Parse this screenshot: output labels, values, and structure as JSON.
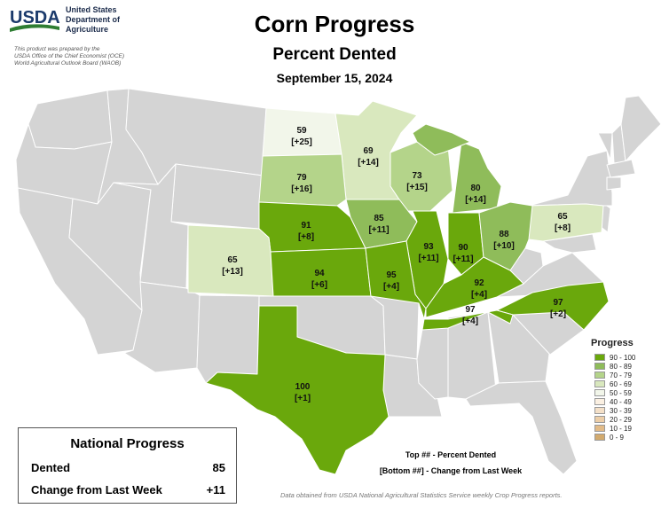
{
  "header": {
    "logo_text": "USDA",
    "department": [
      "United States",
      "Department of",
      "Agriculture"
    ],
    "prepared_by": [
      "This product was prepared by the",
      "USDA Office of the Chief Economist (OCE)",
      "World Agricultural Outlook Board (WAOB)"
    ],
    "title": "Corn Progress",
    "subtitle": "Percent Dented",
    "date": "September 15, 2024"
  },
  "colors": {
    "c90_100": "#6aa80c",
    "c80_89": "#8fbc5a",
    "c70_79": "#b4d48a",
    "c60_69": "#d9e8be",
    "c50_59": "#f2f6ea",
    "c40_49": "#fbf0e2",
    "c30_39": "#f4e0c8",
    "c20_29": "#eccea8",
    "c10_19": "#e2bb88",
    "c0_9": "#d2aa6e",
    "no_data": "#d4d4d4",
    "border": "#ffffff"
  },
  "map_data": {
    "states": [
      {
        "state": "ND",
        "dented": "59",
        "change": "[+25]"
      },
      {
        "state": "MN",
        "dented": "69",
        "change": "[+14]"
      },
      {
        "state": "SD",
        "dented": "79",
        "change": "[+16]"
      },
      {
        "state": "WI",
        "dented": "73",
        "change": "[+15]"
      },
      {
        "state": "MI",
        "dented": "80",
        "change": "[+14]"
      },
      {
        "state": "NE",
        "dented": "91",
        "change": "[+8]"
      },
      {
        "state": "IA",
        "dented": "85",
        "change": "[+11]"
      },
      {
        "state": "PA",
        "dented": "65",
        "change": "[+8]"
      },
      {
        "state": "CO",
        "dented": "65",
        "change": "[+13]"
      },
      {
        "state": "IL",
        "dented": "93",
        "change": "[+11]"
      },
      {
        "state": "IN",
        "dented": "90",
        "change": "[+11]"
      },
      {
        "state": "OH",
        "dented": "88",
        "change": "[+10]"
      },
      {
        "state": "KS",
        "dented": "94",
        "change": "[+6]"
      },
      {
        "state": "MO",
        "dented": "95",
        "change": "[+4]"
      },
      {
        "state": "KY",
        "dented": "92",
        "change": "[+4]"
      },
      {
        "state": "NC",
        "dented": "97",
        "change": "[+2]"
      },
      {
        "state": "TN",
        "dented": "97",
        "change": "[+4]"
      },
      {
        "state": "TX",
        "dented": "100",
        "change": "[+1]"
      }
    ]
  },
  "legend": {
    "title": "Progress",
    "items": [
      {
        "label": "90 - 100",
        "color": "#6aa80c"
      },
      {
        "label": "80 - 89",
        "color": "#8fbc5a"
      },
      {
        "label": "70 - 79",
        "color": "#b4d48a"
      },
      {
        "label": "60 - 69",
        "color": "#d9e8be"
      },
      {
        "label": "50 - 59",
        "color": "#f2f6ea"
      },
      {
        "label": "40 - 49",
        "color": "#fbf0e2"
      },
      {
        "label": "30 - 39",
        "color": "#f4e0c8"
      },
      {
        "label": "20 - 29",
        "color": "#eccea8"
      },
      {
        "label": "10 - 19",
        "color": "#e2bb88"
      },
      {
        "label": "0 - 9",
        "color": "#d2aa6e"
      }
    ]
  },
  "key": {
    "top": "Top ## - Percent Dented",
    "bottom": "[Bottom ##] - Change from Last Week"
  },
  "national": {
    "title": "National Progress",
    "dented_label": "Dented",
    "dented_value": "85",
    "change_label": "Change from Last Week",
    "change_value": "+11"
  },
  "source": "Data obtained from USDA National Agricultural Statistics Service weekly Crop Progress reports."
}
